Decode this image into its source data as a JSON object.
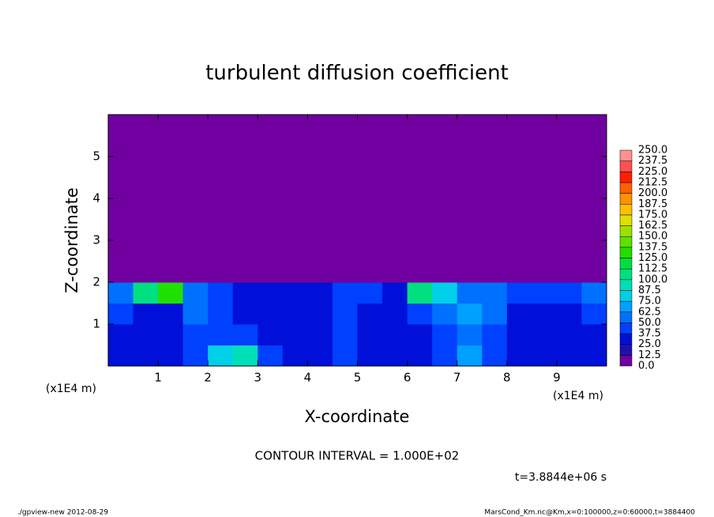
{
  "chart_data": {
    "type": "heatmap",
    "title": "turbulent diffusion coefficient",
    "x_label": "X-coordinate",
    "y_label": "Z-coordinate",
    "x_unit_label": "(x1E4 m)",
    "y_unit_label": "(x1E4 m)",
    "annotation": "CONTOUR INTERVAL = 1.000E+02",
    "time_label": "t=3.8844e+06 s",
    "footer_left": "./gpview-new  2012-08-29",
    "footer_right": "MarsCond_Km.nc@Km,x=0:100000,z=0:60000,t=3884400",
    "xlim": [
      0,
      10
    ],
    "ylim": [
      0,
      6
    ],
    "xticks": [
      1,
      2,
      3,
      4,
      5,
      6,
      7,
      8,
      9
    ],
    "yticks": [
      1,
      2,
      3,
      4,
      5
    ],
    "x": [
      0,
      0.5,
      1,
      1.5,
      2,
      2.5,
      3,
      3.5,
      4,
      4.5,
      5,
      5.5,
      6,
      6.5,
      7,
      7.5,
      8,
      8.5,
      9,
      9.5,
      10
    ],
    "z": [
      0,
      0.5,
      1,
      1.5,
      2,
      6
    ],
    "values": [
      [
        35,
        30,
        30,
        40,
        75,
        90,
        40,
        30,
        30,
        45,
        35,
        30,
        35,
        40,
        65,
        45,
        35,
        30,
        30,
        35
      ],
      [
        30,
        30,
        30,
        45,
        45,
        40,
        30,
        25,
        25,
        40,
        30,
        25,
        30,
        40,
        60,
        40,
        30,
        25,
        30,
        30
      ],
      [
        40,
        35,
        35,
        50,
        45,
        35,
        30,
        30,
        35,
        40,
        35,
        35,
        40,
        55,
        70,
        50,
        35,
        35,
        35,
        40
      ],
      [
        50,
        100,
        125,
        60,
        40,
        35,
        30,
        30,
        35,
        45,
        40,
        35,
        100,
        75,
        60,
        50,
        40,
        40,
        40,
        50
      ],
      [
        0,
        0,
        0,
        0,
        0,
        0,
        0,
        0,
        0,
        0,
        0,
        0,
        0,
        0,
        0,
        0,
        0,
        0,
        0,
        0
      ]
    ],
    "levels": [
      {
        "value": 0,
        "label": "0.0"
      },
      {
        "value": 12.5,
        "label": "12.5"
      },
      {
        "value": 25,
        "label": "25.0"
      },
      {
        "value": 37.5,
        "label": "37.5"
      },
      {
        "value": 50,
        "label": "50.0"
      },
      {
        "value": 62.5,
        "label": "62.5"
      },
      {
        "value": 75,
        "label": "75.0"
      },
      {
        "value": 87.5,
        "label": "87.5"
      },
      {
        "value": 100,
        "label": "100.0"
      },
      {
        "value": 112.5,
        "label": "112.5"
      },
      {
        "value": 125,
        "label": "125.0"
      },
      {
        "value": 137.5,
        "label": "137.5"
      },
      {
        "value": 150,
        "label": "150.0"
      },
      {
        "value": 162.5,
        "label": "162.5"
      },
      {
        "value": 175,
        "label": "175.0"
      },
      {
        "value": 187.5,
        "label": "187.5"
      },
      {
        "value": 200,
        "label": "200.0"
      },
      {
        "value": 212.5,
        "label": "212.5"
      },
      {
        "value": 225,
        "label": "225.0"
      },
      {
        "value": 237.5,
        "label": "237.5"
      },
      {
        "value": 250,
        "label": "250.0"
      }
    ],
    "colors": [
      "#7000a0",
      "#2010b0",
      "#0010d8",
      "#0040ff",
      "#0070ff",
      "#00a0ff",
      "#00d0e8",
      "#00e0b8",
      "#00e080",
      "#00e040",
      "#20e000",
      "#60e000",
      "#a0e000",
      "#e0e000",
      "#ffc000",
      "#ff9000",
      "#ff6000",
      "#ff2000",
      "#ff5050",
      "#ff9090"
    ]
  }
}
